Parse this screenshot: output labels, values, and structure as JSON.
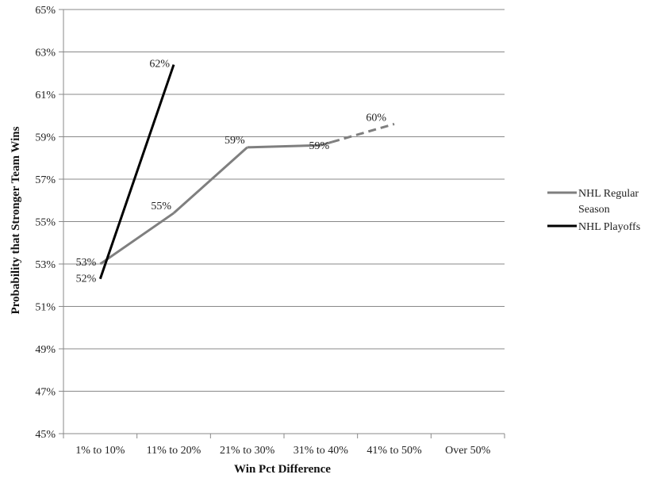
{
  "chart_data": {
    "type": "line",
    "title": "",
    "xlabel": "Win Pct Difference",
    "ylabel": "Probability that Stronger Team Wins",
    "categories": [
      "1% to 10%",
      "11% to 20%",
      "21% to 30%",
      "31% to 40%",
      "41% to 50%",
      "Over 50%"
    ],
    "y_ticks": [
      "45%",
      "47%",
      "49%",
      "51%",
      "53%",
      "55%",
      "57%",
      "59%",
      "61%",
      "63%",
      "65%"
    ],
    "ylim": [
      0.45,
      0.65
    ],
    "grid": "horizontal",
    "legend_position": "right",
    "series": [
      {
        "name": "NHL Regular Season",
        "color": "#7f7f7f",
        "values": [
          0.53,
          0.554,
          0.585,
          0.586,
          0.596,
          null
        ],
        "labels": [
          "53%",
          "55%",
          "59%",
          "59%",
          "60%",
          ""
        ],
        "dashed_from_index": 3
      },
      {
        "name": "NHL Playoffs",
        "color": "#000000",
        "values": [
          0.523,
          0.624,
          null,
          null,
          null,
          null
        ],
        "labels": [
          "52%",
          "62%",
          "",
          "",
          "",
          ""
        ]
      }
    ],
    "legend": {
      "regular_line1": "NHL Regular",
      "regular_line2": "Season",
      "playoffs": "NHL Playoffs"
    }
  }
}
